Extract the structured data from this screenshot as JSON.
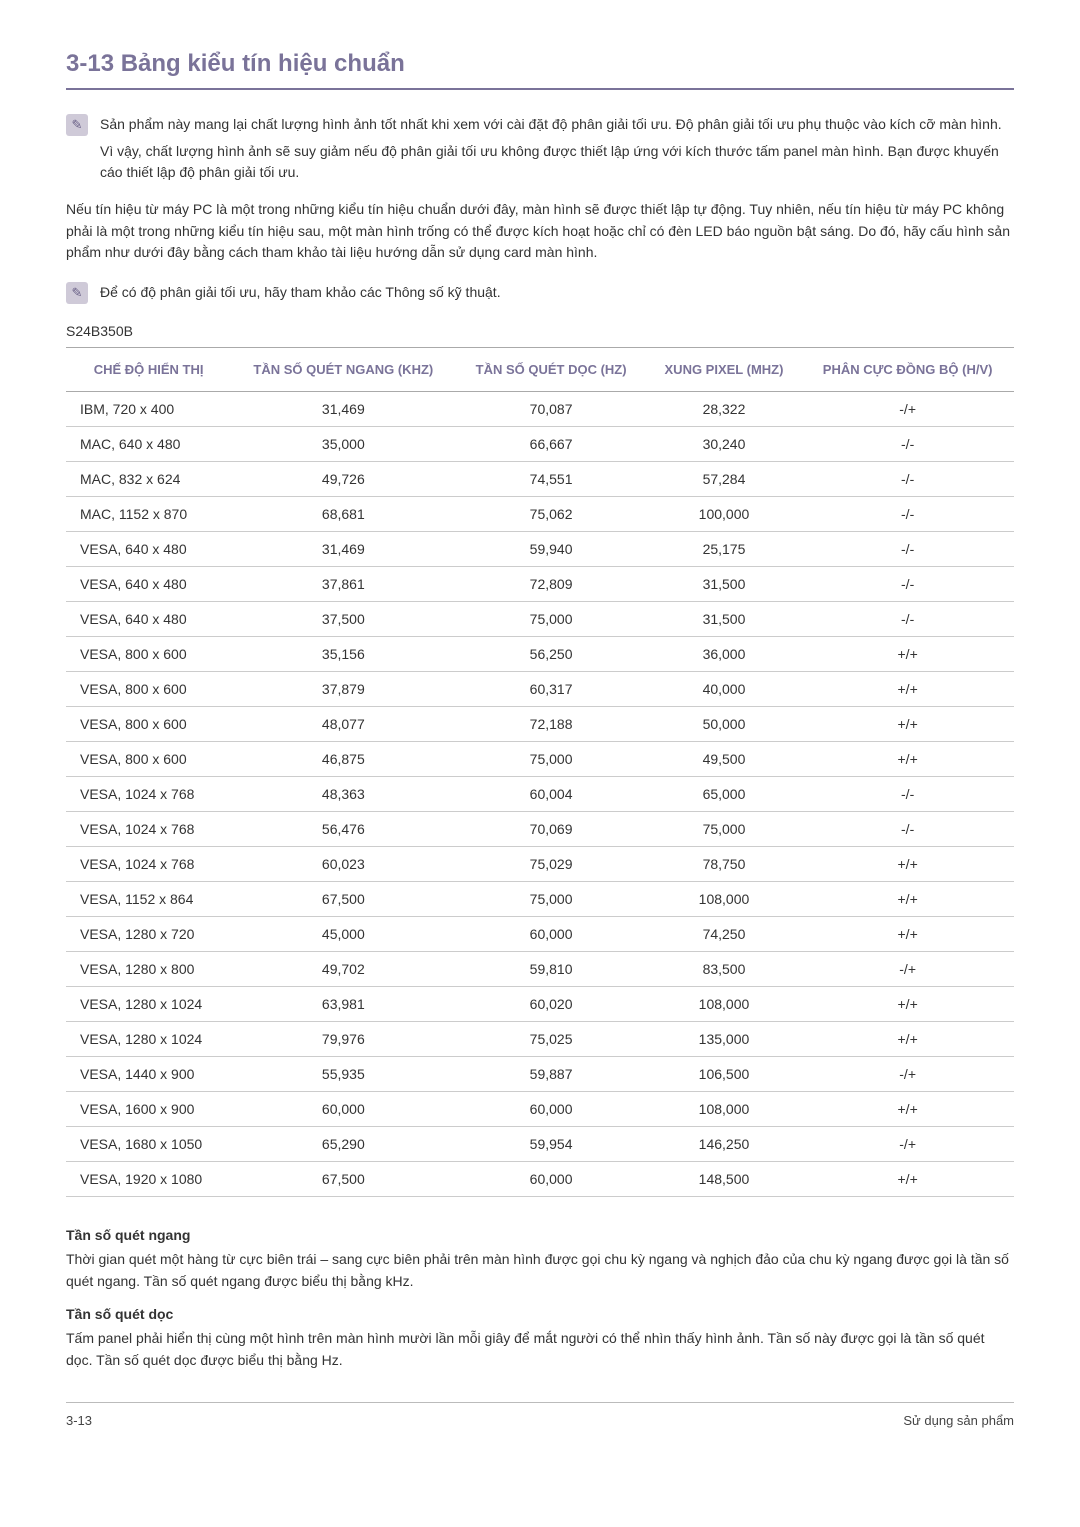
{
  "heading": "3-13  Bảng kiểu tín hiệu chuẩn",
  "note1": {
    "p1": "Sản phẩm này mang lại chất lượng hình ảnh tốt nhất khi xem với cài đặt độ phân giải tối ưu. Độ phân giải tối ưu phụ thuộc vào kích cỡ màn hình.",
    "p2": "Vì vậy, chất lượng hình ảnh sẽ suy giảm nếu độ phân giải tối ưu không được thiết lập ứng với kích thước tấm panel màn hình. Bạn được khuyến cáo thiết lập độ phân giải tối ưu."
  },
  "para": "Nếu tín hiệu từ máy PC là một trong những kiểu tín hiệu chuẩn dưới đây, màn hình sẽ được thiết lập tự động. Tuy nhiên, nếu tín hiệu từ máy PC không phải là một trong những kiểu tín hiệu sau, một màn hình trống có thể được kích hoạt hoặc chỉ có đèn LED báo nguồn bật sáng. Do đó, hãy cấu hình sản phẩm như dưới đây bằng cách tham khảo tài liệu hướng dẫn sử dụng card màn hình.",
  "note2": "Để có độ phân giải tối ưu, hãy tham khảo các Thông số kỹ thuật.",
  "model": "S24B350B",
  "table": {
    "columns": [
      "CHẾ ĐỘ HIỂN THỊ",
      "TẦN SỐ QUÉT NGANG (KHZ)",
      "TẦN SỐ QUÉT DỌC (HZ)",
      "XUNG PIXEL (MHZ)",
      "PHÂN CỰC ĐỒNG BỘ (H/V)"
    ],
    "rows": [
      [
        "IBM, 720 x 400",
        "31,469",
        "70,087",
        "28,322",
        "-/+"
      ],
      [
        "MAC, 640 x 480",
        "35,000",
        "66,667",
        "30,240",
        "-/-"
      ],
      [
        "MAC, 832 x 624",
        "49,726",
        "74,551",
        "57,284",
        "-/-"
      ],
      [
        "MAC, 1152 x 870",
        "68,681",
        "75,062",
        "100,000",
        "-/-"
      ],
      [
        "VESA, 640 x 480",
        "31,469",
        "59,940",
        "25,175",
        "-/-"
      ],
      [
        "VESA, 640 x 480",
        "37,861",
        "72,809",
        "31,500",
        "-/-"
      ],
      [
        "VESA, 640 x 480",
        "37,500",
        "75,000",
        "31,500",
        "-/-"
      ],
      [
        "VESA, 800 x 600",
        "35,156",
        "56,250",
        "36,000",
        "+/+"
      ],
      [
        "VESA, 800 x 600",
        "37,879",
        "60,317",
        "40,000",
        "+/+"
      ],
      [
        "VESA, 800 x 600",
        "48,077",
        "72,188",
        "50,000",
        "+/+"
      ],
      [
        "VESA, 800 x 600",
        "46,875",
        "75,000",
        "49,500",
        "+/+"
      ],
      [
        "VESA, 1024 x 768",
        "48,363",
        "60,004",
        "65,000",
        "-/-"
      ],
      [
        "VESA, 1024 x 768",
        "56,476",
        "70,069",
        "75,000",
        "-/-"
      ],
      [
        "VESA, 1024 x 768",
        "60,023",
        "75,029",
        "78,750",
        "+/+"
      ],
      [
        "VESA, 1152 x 864",
        "67,500",
        "75,000",
        "108,000",
        "+/+"
      ],
      [
        "VESA, 1280 x 720",
        "45,000",
        "60,000",
        "74,250",
        "+/+"
      ],
      [
        "VESA, 1280 x 800",
        "49,702",
        "59,810",
        "83,500",
        "-/+"
      ],
      [
        "VESA, 1280 x 1024",
        "63,981",
        "60,020",
        "108,000",
        "+/+"
      ],
      [
        "VESA, 1280 x 1024",
        "79,976",
        "75,025",
        "135,000",
        "+/+"
      ],
      [
        "VESA, 1440 x 900",
        "55,935",
        "59,887",
        "106,500",
        "-/+"
      ],
      [
        "VESA, 1600 x 900",
        "60,000",
        "60,000",
        "108,000",
        "+/+"
      ],
      [
        "VESA, 1680 x 1050",
        "65,290",
        "59,954",
        "146,250",
        "-/+"
      ],
      [
        "VESA, 1920 x 1080",
        "67,500",
        "60,000",
        "148,500",
        "+/+"
      ]
    ]
  },
  "defs": {
    "t1": "Tần số quét ngang",
    "b1": "Thời gian quét một hàng từ cực biên trái – sang cực biên phải trên màn hình được gọi chu kỳ ngang và nghịch đảo của chu kỳ ngang được gọi là tần số quét ngang. Tần số quét ngang được biểu thị bằng kHz.",
    "t2": "Tần số quét dọc",
    "b2": "Tấm panel phải hiển thị cùng một hình trên màn hình mười lần mỗi giây để mắt người có thể nhìn thấy hình ảnh. Tần số này được gọi là tần số quét dọc. Tần số quét dọc được biểu thị bằng Hz."
  },
  "footer": {
    "left": "3-13",
    "right": "Sử dụng sản phẩm"
  }
}
